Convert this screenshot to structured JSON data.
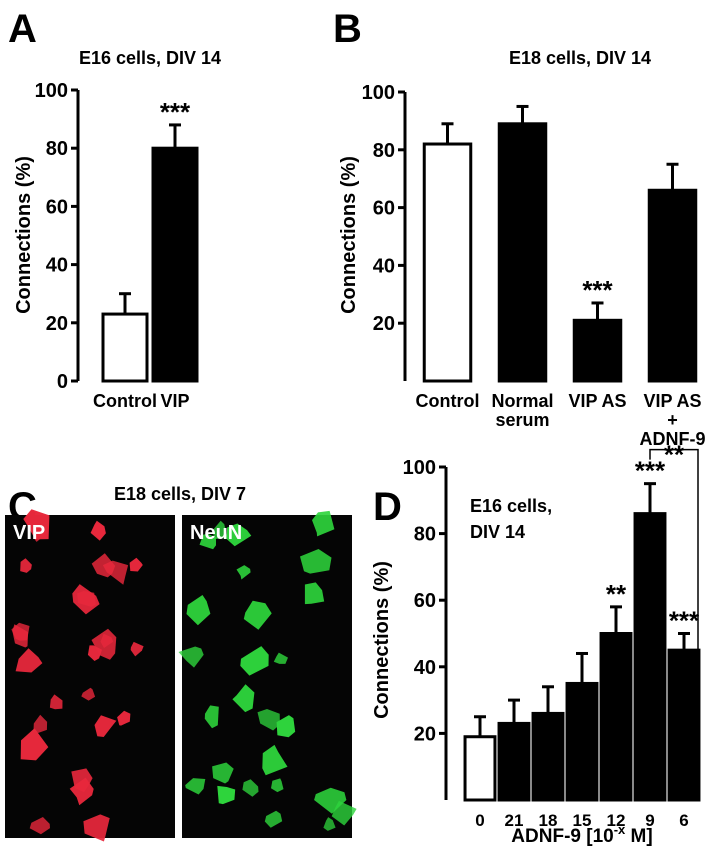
{
  "chart_data": [
    {
      "type": "bar",
      "label": "A",
      "title": "E16 cells, DIV 14",
      "ylabel": "Connections (%)",
      "categories": [
        "Control",
        "VIP"
      ],
      "values": [
        23,
        80
      ],
      "errors": [
        7,
        8
      ],
      "colors": [
        "#ffffff",
        "#000000"
      ],
      "ylim": [
        0,
        100
      ],
      "yticks": [
        0,
        20,
        40,
        60,
        80,
        100
      ],
      "annotations": [
        "***"
      ]
    },
    {
      "type": "bar",
      "label": "B",
      "title": "E18 cells, DIV 14",
      "ylabel": "Connections (%)",
      "categories": [
        "Control",
        "Normal\nserum",
        "VIP AS",
        "VIP AS\n+\nADNF-9"
      ],
      "values": [
        82,
        89,
        21,
        66
      ],
      "errors": [
        7,
        6,
        6,
        9
      ],
      "colors": [
        "#ffffff",
        "#000000",
        "#000000",
        "#000000"
      ],
      "ylim": [
        0,
        100
      ],
      "yticks": [
        20,
        40,
        60,
        80,
        100
      ],
      "annotations": [
        "***"
      ]
    },
    {
      "type": "image",
      "label": "C",
      "title": "E18 cells, DIV 7",
      "panels": [
        {
          "name": "VIP",
          "color": "#e8283c"
        },
        {
          "name": "NeuN",
          "color": "#2ed43c"
        }
      ]
    },
    {
      "type": "bar",
      "label": "D",
      "title": "E16 cells,\nDIV 14",
      "ylabel": "Connections (%)",
      "xlabel": [
        "ADNF-9 [10",
        "-x",
        " M]"
      ],
      "categories": [
        "0",
        "21",
        "18",
        "15",
        "12",
        "9",
        "6"
      ],
      "values": [
        19,
        23,
        26,
        35,
        50,
        86,
        45
      ],
      "errors": [
        6,
        7,
        8,
        9,
        8,
        9,
        5
      ],
      "colors": [
        "#ffffff",
        "#000000",
        "#000000",
        "#000000",
        "#000000",
        "#000000",
        "#000000"
      ],
      "ylim": [
        0,
        100
      ],
      "yticks": [
        20,
        40,
        60,
        80,
        100
      ],
      "annotations": [
        "**",
        "***",
        "***",
        "**"
      ]
    }
  ]
}
